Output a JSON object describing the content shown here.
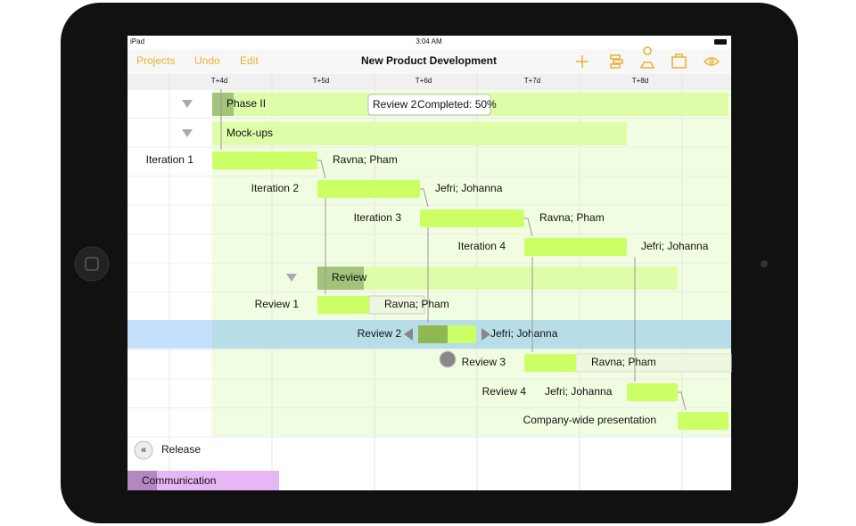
{
  "status_bar": {
    "device": "iPad",
    "time": "3:04 AM"
  },
  "toolbar": {
    "buttons": [
      "Projects",
      "Undo",
      "Edit"
    ],
    "title": "New Product Development"
  },
  "timeline": [
    "T+4d",
    "T+5d",
    "T+6d",
    "T+7d",
    "T+8d"
  ],
  "tooltip": {
    "task": "Review 2",
    "status": "Completed: 50%"
  },
  "rows": [
    {
      "label": "Phase II"
    },
    {
      "label": "Mock-ups"
    },
    {
      "label": "Iteration 1",
      "resources": "Ravna; Pham"
    },
    {
      "label": "Iteration 2",
      "resources": "Jefri; Johanna"
    },
    {
      "label": "Iteration 3",
      "resources": "Ravna; Pham"
    },
    {
      "label": "Iteration 4",
      "resources": "Jefri; Johanna"
    },
    {
      "label": "Review"
    },
    {
      "label": "Review 1",
      "resources": "Ravna; Pham"
    },
    {
      "label": "Review 2",
      "resources": "Jefri; Johanna"
    },
    {
      "label": "Review 3",
      "resources": "Ravna; Pham"
    },
    {
      "label": "Review 4",
      "resources": "Jefri; Johanna"
    },
    {
      "label": "Company-wide presentation"
    }
  ],
  "footer_rows": [
    "Release",
    "Communication"
  ]
}
